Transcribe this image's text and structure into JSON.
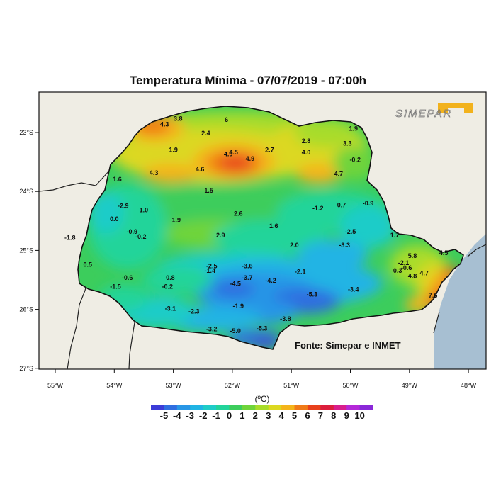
{
  "map": {
    "title": "Temperatura Mínima - 07/07/2019 - 07:00h",
    "source": "Fonte: Simepar e INMET",
    "logo_text": "SIMEPAR",
    "unit_label": "(ºC)",
    "lat_ticks": [
      "23°S",
      "24°S",
      "25°S",
      "26°S",
      "27°S"
    ],
    "lon_ticks": [
      "55°W",
      "54°W",
      "53°W",
      "52°W",
      "51°W",
      "50°W",
      "49°W",
      "48°W"
    ],
    "colorbar": {
      "labels": [
        "-5",
        "-4",
        "-3",
        "-2",
        "-1",
        "0",
        "1",
        "2",
        "3",
        "4",
        "5",
        "6",
        "7",
        "8",
        "9",
        "10"
      ],
      "colors": [
        "#3c3cd8",
        "#2f6ee0",
        "#2896e6",
        "#20b4e4",
        "#1fccc8",
        "#22d49a",
        "#3ccd5c",
        "#6fd43a",
        "#a8dc2a",
        "#dcd820",
        "#f4b41a",
        "#f07a18",
        "#e8401c",
        "#dc1e3c",
        "#d81e8c",
        "#b428d8",
        "#8a28d8"
      ]
    },
    "stations": [
      {
        "v": "3.8",
        "lon": -52.92,
        "lat": -22.8
      },
      {
        "v": "6",
        "lon": -52.1,
        "lat": -22.82
      },
      {
        "v": "4.3",
        "lon": -53.15,
        "lat": -22.9
      },
      {
        "v": "2.4",
        "lon": -52.45,
        "lat": -23.05
      },
      {
        "v": "1.9",
        "lon": -49.95,
        "lat": -22.97
      },
      {
        "v": "2.8",
        "lon": -50.75,
        "lat": -23.18
      },
      {
        "v": "3.3",
        "lon": -50.05,
        "lat": -23.22
      },
      {
        "v": "1.9",
        "lon": -53.0,
        "lat": -23.33
      },
      {
        "v": "2.7",
        "lon": -51.37,
        "lat": -23.33
      },
      {
        "v": "4.0",
        "lon": -50.75,
        "lat": -23.37
      },
      {
        "v": "4.5",
        "lon": -51.98,
        "lat": -23.37
      },
      {
        "v": "4.9",
        "lon": -52.07,
        "lat": -23.4
      },
      {
        "v": "4.9",
        "lon": -51.7,
        "lat": -23.48
      },
      {
        "v": "-0.2",
        "lon": -49.92,
        "lat": -23.5
      },
      {
        "v": "4.6",
        "lon": -52.55,
        "lat": -23.66
      },
      {
        "v": "4.3",
        "lon": -53.33,
        "lat": -23.72
      },
      {
        "v": "4.7",
        "lon": -50.2,
        "lat": -23.74
      },
      {
        "v": "1.6",
        "lon": -53.95,
        "lat": -23.83
      },
      {
        "v": "1.5",
        "lon": -52.4,
        "lat": -24.02
      },
      {
        "v": "-2.9",
        "lon": -53.85,
        "lat": -24.28
      },
      {
        "v": "1.0",
        "lon": -53.5,
        "lat": -24.35
      },
      {
        "v": "-1.2",
        "lon": -50.55,
        "lat": -24.32
      },
      {
        "v": "0.7",
        "lon": -50.15,
        "lat": -24.27
      },
      {
        "v": "-0.9",
        "lon": -49.7,
        "lat": -24.24
      },
      {
        "v": "2.6",
        "lon": -51.9,
        "lat": -24.41
      },
      {
        "v": "0.0",
        "lon": -54.0,
        "lat": -24.5
      },
      {
        "v": "1.9",
        "lon": -52.95,
        "lat": -24.52
      },
      {
        "v": "1.6",
        "lon": -51.3,
        "lat": -24.62
      },
      {
        "v": "-0.9",
        "lon": -53.7,
        "lat": -24.72
      },
      {
        "v": "-0.2",
        "lon": -53.55,
        "lat": -24.8
      },
      {
        "v": "-2.5",
        "lon": -50.0,
        "lat": -24.72
      },
      {
        "v": "1.7",
        "lon": -49.25,
        "lat": -24.78
      },
      {
        "v": "2.9",
        "lon": -52.2,
        "lat": -24.78
      },
      {
        "v": "-1.8",
        "lon": -54.75,
        "lat": -24.82
      },
      {
        "v": "2.0",
        "lon": -50.95,
        "lat": -24.95
      },
      {
        "v": "-3.3",
        "lon": -50.1,
        "lat": -24.95
      },
      {
        "v": "5.8",
        "lon": -48.95,
        "lat": -25.13
      },
      {
        "v": "4.5",
        "lon": -48.42,
        "lat": -25.08
      },
      {
        "v": "-2.1",
        "lon": -49.1,
        "lat": -25.25
      },
      {
        "v": "-0.6",
        "lon": -49.05,
        "lat": -25.33
      },
      {
        "v": "0.3",
        "lon": -49.2,
        "lat": -25.38
      },
      {
        "v": "0.5",
        "lon": -54.45,
        "lat": -25.28
      },
      {
        "v": "-2.5",
        "lon": -52.35,
        "lat": -25.3
      },
      {
        "v": "-1.4",
        "lon": -52.38,
        "lat": -25.38
      },
      {
        "v": "-3.6",
        "lon": -51.75,
        "lat": -25.3
      },
      {
        "v": "-2.1",
        "lon": -50.85,
        "lat": -25.4
      },
      {
        "v": "4.7",
        "lon": -48.75,
        "lat": -25.42
      },
      {
        "v": "4.8",
        "lon": -48.95,
        "lat": -25.47
      },
      {
        "v": "0.8",
        "lon": -53.05,
        "lat": -25.5
      },
      {
        "v": "-0.6",
        "lon": -53.78,
        "lat": -25.5
      },
      {
        "v": "-3.7",
        "lon": -51.75,
        "lat": -25.5
      },
      {
        "v": "-4.2",
        "lon": -51.35,
        "lat": -25.55
      },
      {
        "v": "-4.5",
        "lon": -51.95,
        "lat": -25.6
      },
      {
        "v": "-0.2",
        "lon": -53.1,
        "lat": -25.65
      },
      {
        "v": "-1.5",
        "lon": -53.98,
        "lat": -25.65
      },
      {
        "v": "-3.4",
        "lon": -49.95,
        "lat": -25.7
      },
      {
        "v": "-5.3",
        "lon": -50.65,
        "lat": -25.78
      },
      {
        "v": "7.6",
        "lon": -48.6,
        "lat": -25.8
      },
      {
        "v": "-1.9",
        "lon": -51.9,
        "lat": -25.98
      },
      {
        "v": "-3.1",
        "lon": -53.05,
        "lat": -26.02
      },
      {
        "v": "-2.3",
        "lon": -52.65,
        "lat": -26.07
      },
      {
        "v": "-3.8",
        "lon": -51.1,
        "lat": -26.2
      },
      {
        "v": "-3.2",
        "lon": -52.35,
        "lat": -26.37
      },
      {
        "v": "-5.0",
        "lon": -51.95,
        "lat": -26.4
      },
      {
        "v": "-5.3",
        "lon": -51.5,
        "lat": -26.36
      }
    ]
  }
}
